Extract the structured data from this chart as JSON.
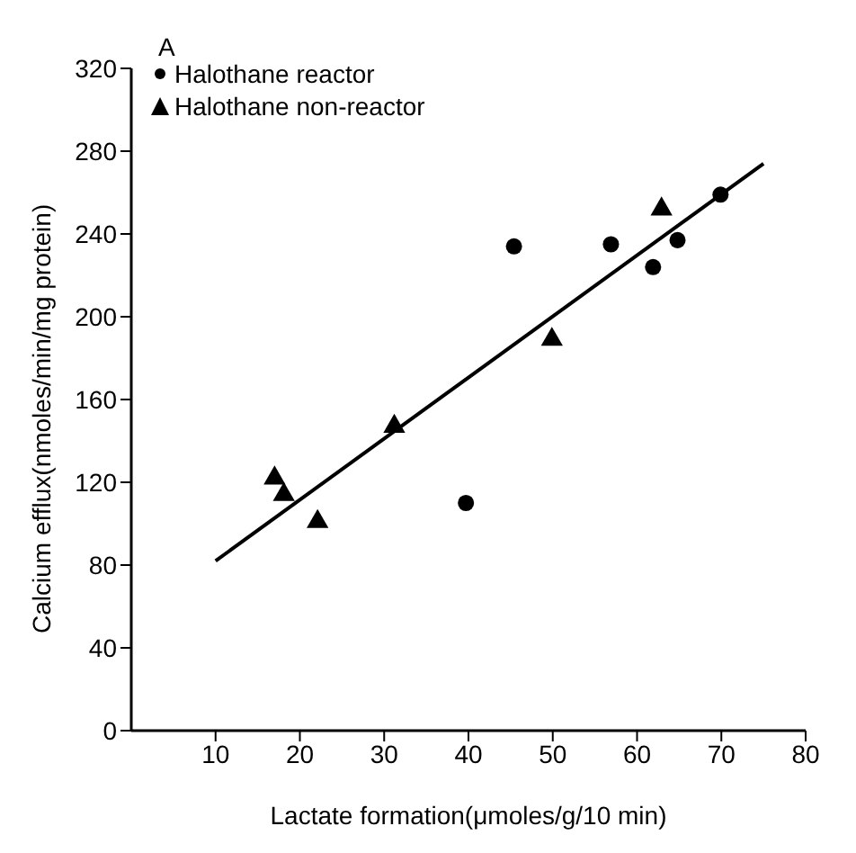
{
  "chart_data": {
    "type": "scatter",
    "title": "A",
    "xlabel": "Lactate formation(μmoles/g/10 min)",
    "ylabel": "Calcium efflux(nmoles/min/mg protein)",
    "xlim": [
      0,
      80
    ],
    "xticks": [
      10,
      20,
      30,
      40,
      50,
      60,
      70,
      80
    ],
    "ylim": [
      0,
      320
    ],
    "yticks": [
      0,
      40,
      80,
      120,
      160,
      200,
      240,
      280,
      320
    ],
    "grid": false,
    "legend": "top left",
    "series": [
      {
        "name": "Halothane reactor",
        "color": "#000000",
        "marker": "circle",
        "x": [
          45.4,
          39.7,
          56.9,
          61.9,
          64.8,
          69.9
        ],
        "values": [
          234,
          110,
          235,
          224,
          237,
          259
        ]
      },
      {
        "name": "Halothane non-reactor",
        "color": "#000000",
        "marker": "triangle",
        "x": [
          17,
          18.1,
          22.1,
          31.2,
          49.9,
          62.9
        ],
        "values": [
          122,
          114,
          101,
          147,
          189,
          252
        ]
      },
      {
        "type": "line",
        "color": "#000000",
        "x": [
          10,
          75
        ],
        "values": [
          82,
          274
        ]
      }
    ]
  }
}
